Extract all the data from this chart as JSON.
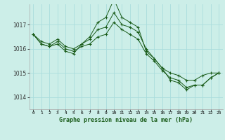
{
  "title": "Graphe pression niveau de la mer (hPa)",
  "background_color": "#cceee8",
  "grid_color": "#aadddd",
  "line_color": "#1a5c1a",
  "ylim": [
    1013.5,
    1017.85
  ],
  "yticks": [
    1014,
    1015,
    1016,
    1017
  ],
  "x_labels": [
    "0",
    "1",
    "2",
    "3",
    "4",
    "5",
    "6",
    "7",
    "8",
    "9",
    "10",
    "11",
    "12",
    "13",
    "14",
    "15",
    "16",
    "17",
    "18",
    "19",
    "20",
    "21",
    "22",
    "23"
  ],
  "series": [
    [
      1016.6,
      1016.2,
      1016.1,
      1016.3,
      1016.0,
      1015.9,
      1016.1,
      1016.2,
      1016.5,
      1016.6,
      1017.1,
      1016.8,
      1016.6,
      1016.4,
      1015.8,
      1015.5,
      1015.1,
      1014.8,
      1014.7,
      1014.4,
      1014.5,
      1014.5,
      1014.8,
      1015.0
    ],
    [
      1016.6,
      1016.3,
      1016.2,
      1016.4,
      1016.1,
      1016.0,
      1016.2,
      1016.4,
      1016.8,
      1016.9,
      1017.5,
      1017.0,
      1016.9,
      1016.7,
      1016.0,
      1015.6,
      1015.2,
      1015.0,
      1014.9,
      1014.7,
      1014.7,
      1014.9,
      1015.0,
      1015.0
    ],
    [
      1016.6,
      1016.2,
      1016.1,
      1016.2,
      1015.9,
      1015.8,
      1016.2,
      1016.5,
      1017.1,
      1017.3,
      1018.05,
      1017.3,
      1017.1,
      1016.9,
      1015.9,
      1015.6,
      1015.2,
      1014.7,
      1014.6,
      1014.3,
      1014.5,
      1014.5,
      1014.8,
      1015.0
    ]
  ]
}
